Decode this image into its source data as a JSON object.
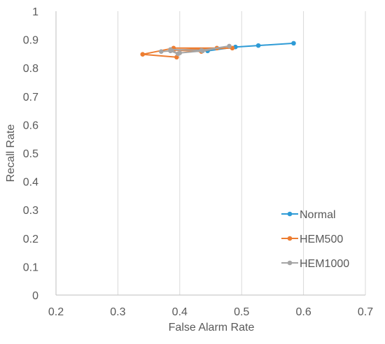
{
  "chart_data": {
    "type": "line",
    "title": "",
    "xlabel": "False Alarm Rate",
    "ylabel": "Recall Rate",
    "xlim": [
      0.2,
      0.7
    ],
    "ylim": [
      0,
      1
    ],
    "xticks": [
      0.2,
      0.3,
      0.4,
      0.5,
      0.6,
      0.7
    ],
    "yticks": [
      0,
      0.1,
      0.2,
      0.3,
      0.4,
      0.5,
      0.6,
      0.7,
      0.8,
      0.9,
      1
    ],
    "xtick_labels": [
      "0.2",
      "0.3",
      "0.4",
      "0.5",
      "0.6",
      "0.7"
    ],
    "ytick_labels": [
      "0",
      "0.1",
      "0.2",
      "0.3",
      "0.4",
      "0.5",
      "0.6",
      "0.7",
      "0.8",
      "0.9",
      "1"
    ],
    "grid": "vertical",
    "legend_position": "bottom-right",
    "series": [
      {
        "name": "Normal",
        "color": "#2E9BD6",
        "x": [
          0.445,
          0.49,
          0.527,
          0.584
        ],
        "y": [
          0.86,
          0.874,
          0.879,
          0.887
        ]
      },
      {
        "name": "HEM500",
        "color": "#ED7D31",
        "x": [
          0.395,
          0.34,
          0.39,
          0.485,
          0.39,
          0.435,
          0.46
        ],
        "y": [
          0.838,
          0.848,
          0.87,
          0.87,
          0.863,
          0.858,
          0.87
        ]
      },
      {
        "name": "HEM1000",
        "color": "#A5A5A5",
        "x": [
          0.37,
          0.385,
          0.397,
          0.385,
          0.435,
          0.48,
          0.437,
          0.4
        ],
        "y": [
          0.858,
          0.86,
          0.85,
          0.865,
          0.862,
          0.877,
          0.86,
          0.853
        ]
      }
    ]
  }
}
